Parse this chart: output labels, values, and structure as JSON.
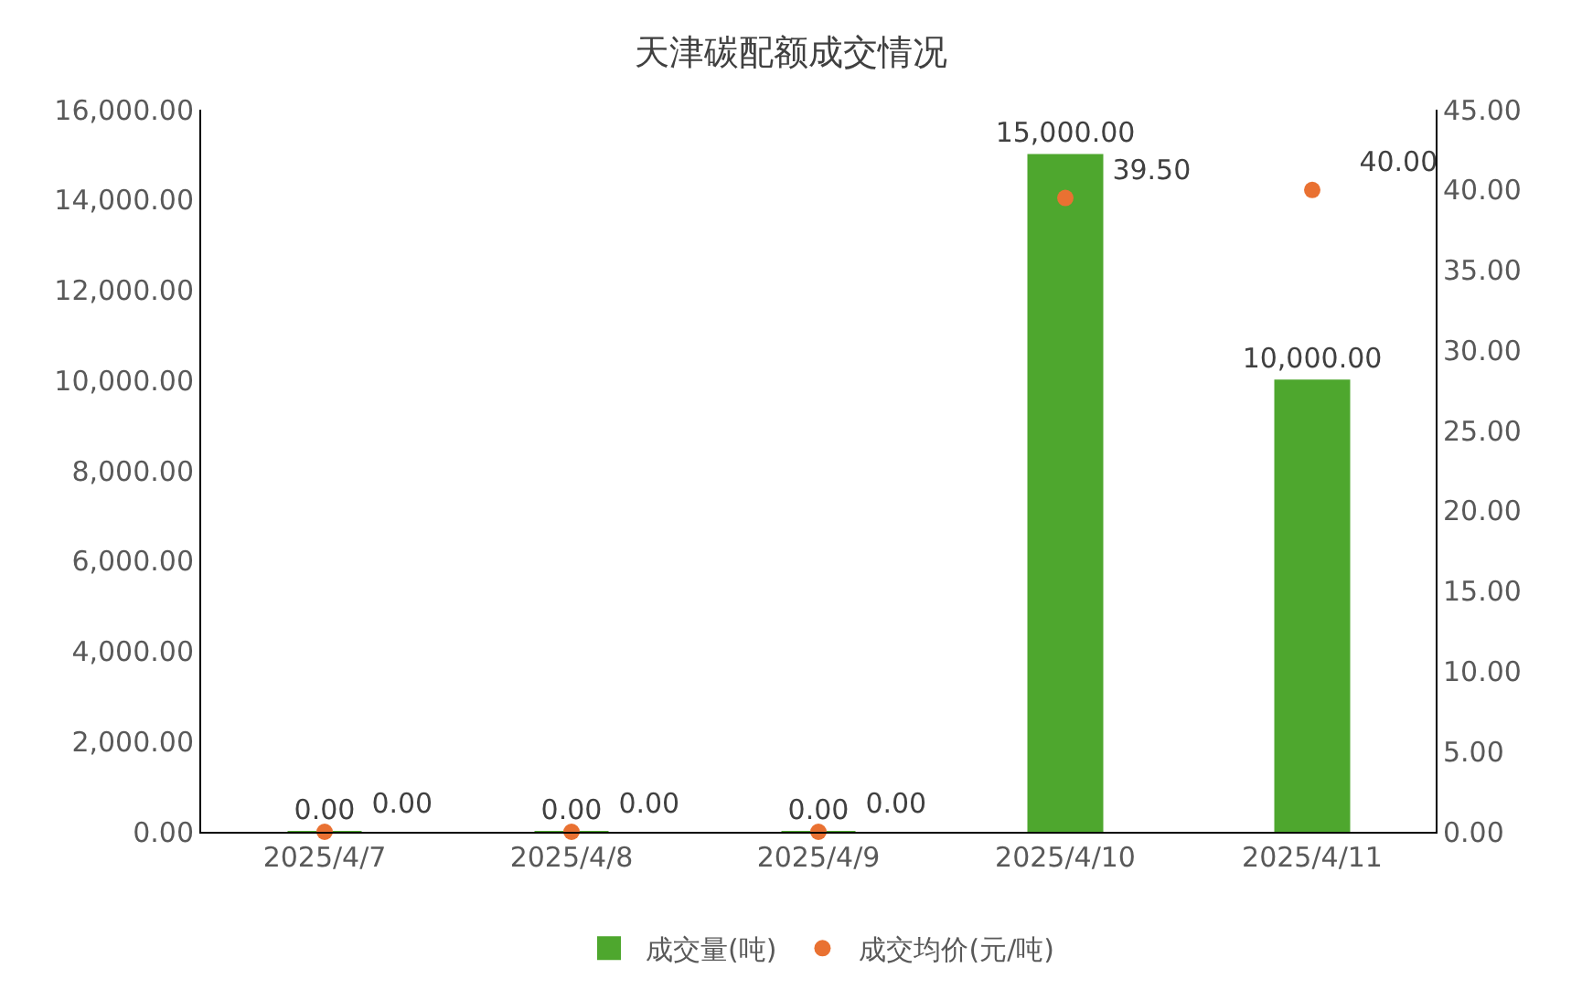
{
  "chart_data": {
    "type": "bar",
    "title": "天津碳配额成交情况",
    "categories": [
      "2025/4/7",
      "2025/4/8",
      "2025/4/9",
      "2025/4/10",
      "2025/4/11"
    ],
    "series": [
      {
        "name": "成交量(吨)",
        "color": "#4ea72e",
        "values": [
          0,
          0,
          0,
          15000,
          10000
        ],
        "value_labels": [
          "0.00",
          "0.00",
          "0.00",
          "15,000.00",
          "10,000.00"
        ]
      },
      {
        "name": "成交均价(元/吨)",
        "type": "scatter",
        "axis": "y2",
        "color": "#e97132",
        "values": [
          0,
          0,
          0,
          39.5,
          40
        ],
        "value_labels": [
          "0.00",
          "0.00",
          "0.00",
          "39.50",
          "40.00"
        ]
      }
    ],
    "ylim": [
      0,
      16000
    ],
    "yticks": [
      {
        "value": 0,
        "label": "0.00"
      },
      {
        "value": 2000,
        "label": "2,000.00"
      },
      {
        "value": 4000,
        "label": "4,000.00"
      },
      {
        "value": 6000,
        "label": "6,000.00"
      },
      {
        "value": 8000,
        "label": "8,000.00"
      },
      {
        "value": 10000,
        "label": "10,000.00"
      },
      {
        "value": 12000,
        "label": "12,000.00"
      },
      {
        "value": 14000,
        "label": "14,000.00"
      },
      {
        "value": 16000,
        "label": "16,000.00"
      }
    ],
    "y2lim": [
      0,
      45
    ],
    "y2ticks": [
      {
        "value": 0,
        "label": "0.00"
      },
      {
        "value": 5,
        "label": "5.00"
      },
      {
        "value": 10,
        "label": "10.00"
      },
      {
        "value": 15,
        "label": "15.00"
      },
      {
        "value": 20,
        "label": "20.00"
      },
      {
        "value": 25,
        "label": "25.00"
      },
      {
        "value": 30,
        "label": "30.00"
      },
      {
        "value": 35,
        "label": "35.00"
      },
      {
        "value": 40,
        "label": "40.00"
      },
      {
        "value": 45,
        "label": "45.00"
      }
    ],
    "grid": false,
    "legend": "bottom",
    "marker": "circle"
  }
}
